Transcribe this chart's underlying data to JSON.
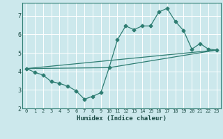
{
  "xlabel": "Humidex (Indice chaleur)",
  "background_color": "#cce8ec",
  "grid_color": "#ffffff",
  "line_color": "#2e7d72",
  "xlim": [
    -0.5,
    23.5
  ],
  "ylim": [
    2,
    7.7
  ],
  "yticks": [
    2,
    3,
    4,
    5,
    6,
    7
  ],
  "xticks": [
    0,
    1,
    2,
    3,
    4,
    5,
    6,
    7,
    8,
    9,
    10,
    11,
    12,
    13,
    14,
    15,
    16,
    17,
    18,
    19,
    20,
    21,
    22,
    23
  ],
  "line1_x": [
    0,
    1,
    2,
    3,
    4,
    5,
    6,
    7,
    8,
    9,
    10,
    11,
    12,
    13,
    14,
    15,
    16,
    17,
    18,
    19,
    20,
    21,
    22,
    23
  ],
  "line1_y": [
    4.15,
    3.95,
    3.8,
    3.45,
    3.35,
    3.2,
    2.95,
    2.5,
    2.65,
    2.85,
    4.2,
    5.7,
    6.45,
    6.25,
    6.45,
    6.45,
    7.2,
    7.4,
    6.7,
    6.2,
    5.2,
    5.5,
    5.2,
    5.15
  ],
  "line2_x": [
    0,
    23
  ],
  "line2_y": [
    4.15,
    5.15
  ],
  "line3_x": [
    0,
    10,
    23
  ],
  "line3_y": [
    4.15,
    4.2,
    5.15
  ]
}
